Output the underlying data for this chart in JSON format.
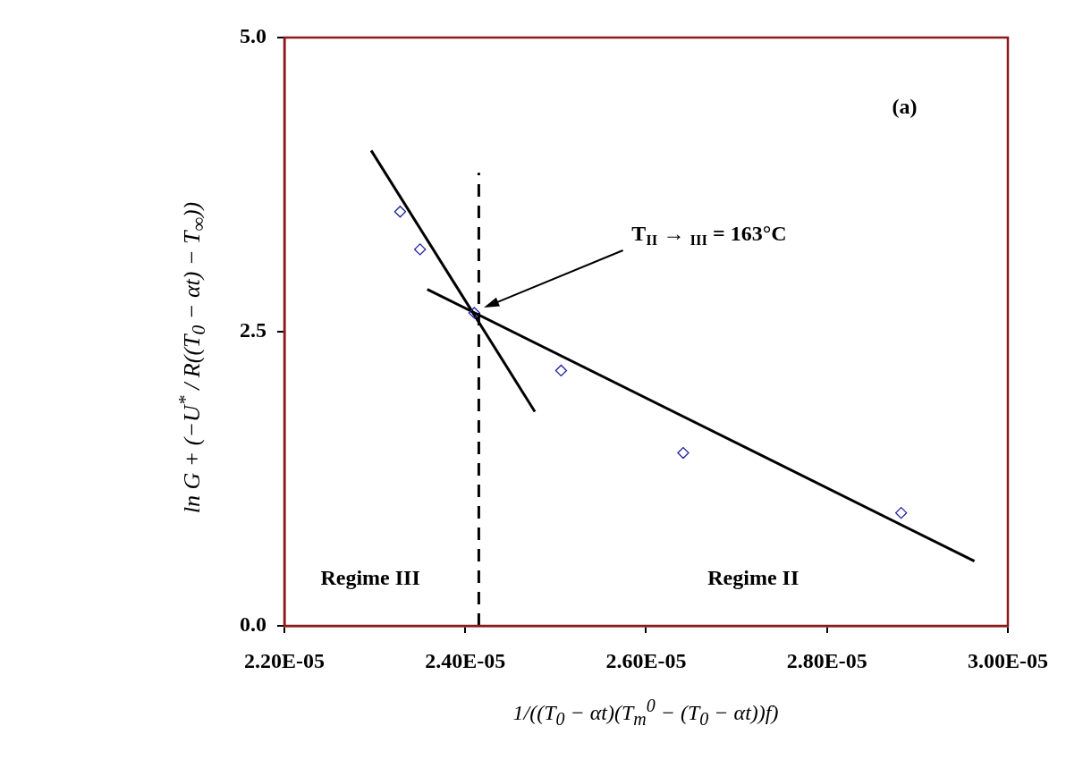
{
  "chart_data": {
    "type": "scatter",
    "xlabel": "1/((T$_{0}$ − αt)(T$_{m}$$^{0}$ − (T$_{0}$ − αt))f)",
    "ylabel": "ln G + (−U$^{*}$ / R((T$_{0}$ − αt) − T$_{∞}$))",
    "series": [
      {
        "type": "scatter",
        "color": "#2020a0",
        "marker": "diamond",
        "x": [
          2.328e-05,
          2.35e-05,
          2.41e-05,
          2.506e-05,
          2.641e-05,
          2.882e-05
        ],
        "values": [
          3.52,
          3.2,
          2.66,
          2.17,
          1.47,
          0.96
        ]
      },
      {
        "type": "line",
        "color": "#000000",
        "marker": "none",
        "x": [
          2.296e-05,
          2.477e-05
        ],
        "values": [
          4.04,
          1.82
        ]
      },
      {
        "type": "line",
        "color": "#000000",
        "marker": "none",
        "x": [
          2.358e-05,
          2.963e-05
        ],
        "values": [
          2.86,
          0.55
        ]
      }
    ],
    "xlim": [
      2.2e-05,
      3e-05
    ],
    "xticks": [
      {
        "value": 2.2e-05,
        "label": "2.20E-05"
      },
      {
        "value": 2.4e-05,
        "label": "2.40E-05"
      },
      {
        "value": 2.6e-05,
        "label": "2.60E-05"
      },
      {
        "value": 2.8e-05,
        "label": "2.80E-05"
      },
      {
        "value": 3e-05,
        "label": "3.00E-05"
      }
    ],
    "ylim": [
      0,
      5
    ],
    "yticks": [
      {
        "value": 0,
        "label": "0.0"
      },
      {
        "value": 2.5,
        "label": "2.5"
      },
      {
        "value": 5,
        "label": "5.0"
      }
    ],
    "ref_lines": [
      {
        "axis": "x",
        "value": 2.415e-05,
        "color": "#000000",
        "line_style": "dashed"
      }
    ],
    "annotations": [
      "(a)",
      "T$_{II}$ → $_{III}$ = 163°C",
      "Regime III",
      "Regime II"
    ],
    "grid": false,
    "legend": false
  }
}
